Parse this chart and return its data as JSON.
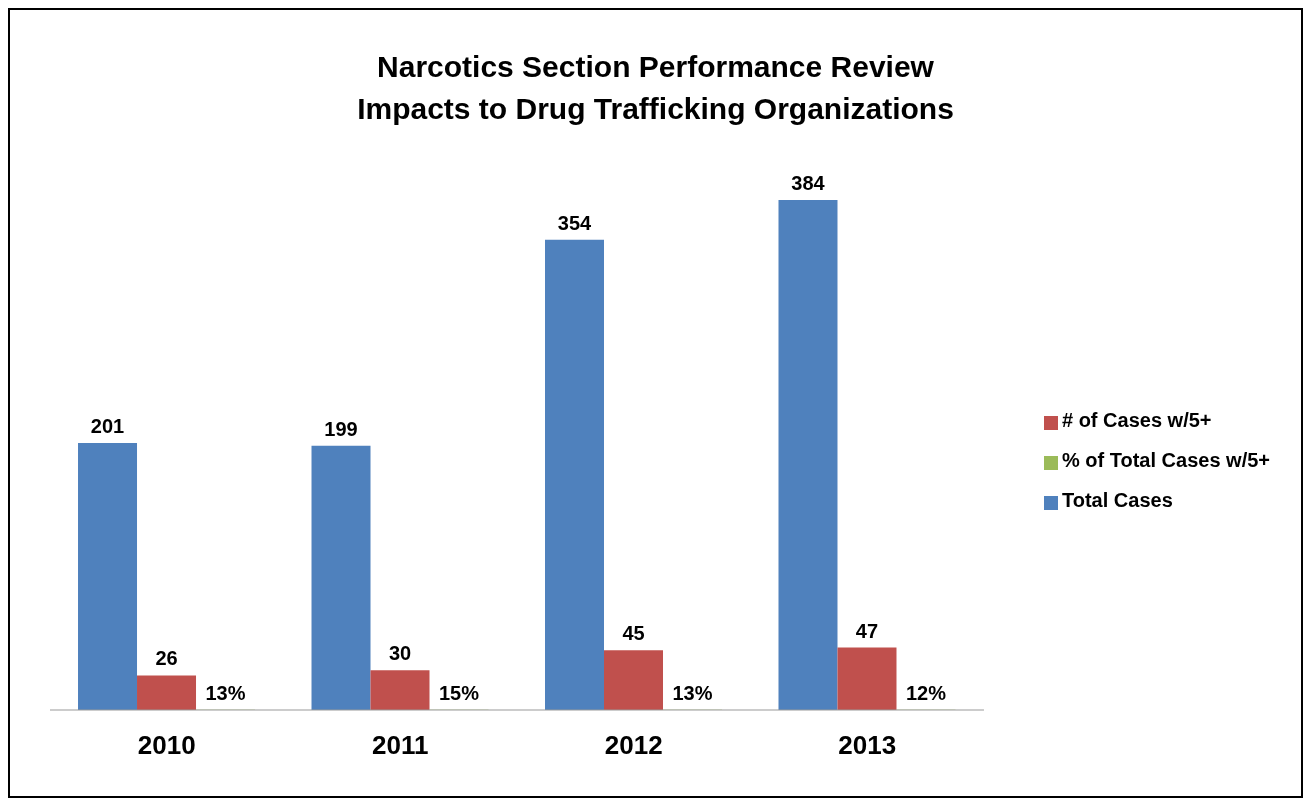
{
  "chart_data": {
    "type": "bar",
    "title": "Narcotics Section Performance Review",
    "subtitle": "Impacts to Drug Trafficking Organizations",
    "categories": [
      "2010",
      "2011",
      "2012",
      "2013"
    ],
    "series": [
      {
        "name": "Total Cases",
        "color": "#4f81bd",
        "values": [
          201,
          199,
          354,
          384
        ],
        "value_labels": [
          "201",
          "199",
          "354",
          "384"
        ]
      },
      {
        "name": "# of Cases w/5+",
        "color": "#c0504d",
        "values": [
          26,
          30,
          45,
          47
        ],
        "value_labels": [
          "26",
          "30",
          "45",
          "47"
        ]
      },
      {
        "name": "% of Total Cases w/5+",
        "color": "#9bbb59",
        "values": [
          0.13,
          0.15,
          0.13,
          0.12
        ],
        "value_labels": [
          "13%",
          "15%",
          "13%",
          "12%"
        ]
      }
    ],
    "legend": "right",
    "grid": false
  }
}
